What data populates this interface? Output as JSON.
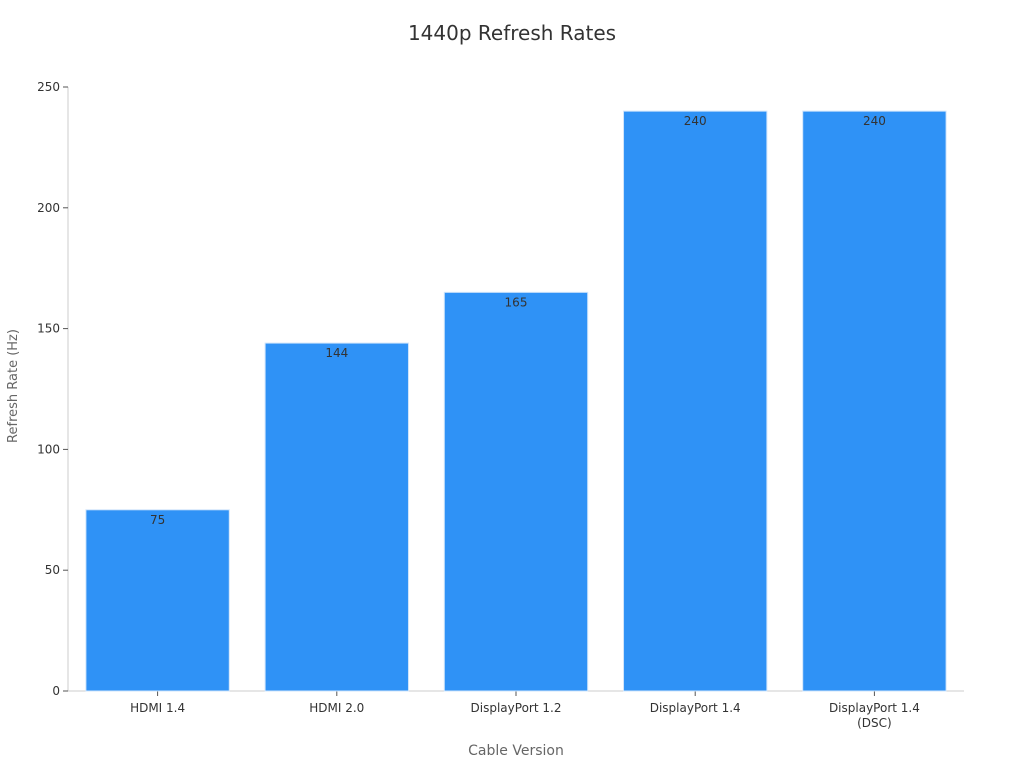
{
  "chart_data": {
    "type": "bar",
    "title": "1440p Refresh Rates",
    "xlabel": "Cable Version",
    "ylabel": "Refresh Rate (Hz)",
    "categories": [
      [
        "HDMI 1.4"
      ],
      [
        "HDMI 2.0"
      ],
      [
        "DisplayPort 1.2"
      ],
      [
        "DisplayPort 1.4"
      ],
      [
        "DisplayPort 1.4",
        "(DSC)"
      ]
    ],
    "values": [
      75,
      144,
      165,
      240,
      240
    ],
    "value_labels": [
      "75",
      "144",
      "165",
      "240",
      "240"
    ],
    "ylim": [
      0,
      250
    ],
    "yticks": [
      0,
      50,
      100,
      150,
      200,
      250
    ],
    "grid": false,
    "legend": "none",
    "colors": {
      "bar": "#2f92f6",
      "bar_edge": "#cfe4fb",
      "axis": "#cccccc",
      "text": "#333333",
      "label": "#666666"
    }
  }
}
